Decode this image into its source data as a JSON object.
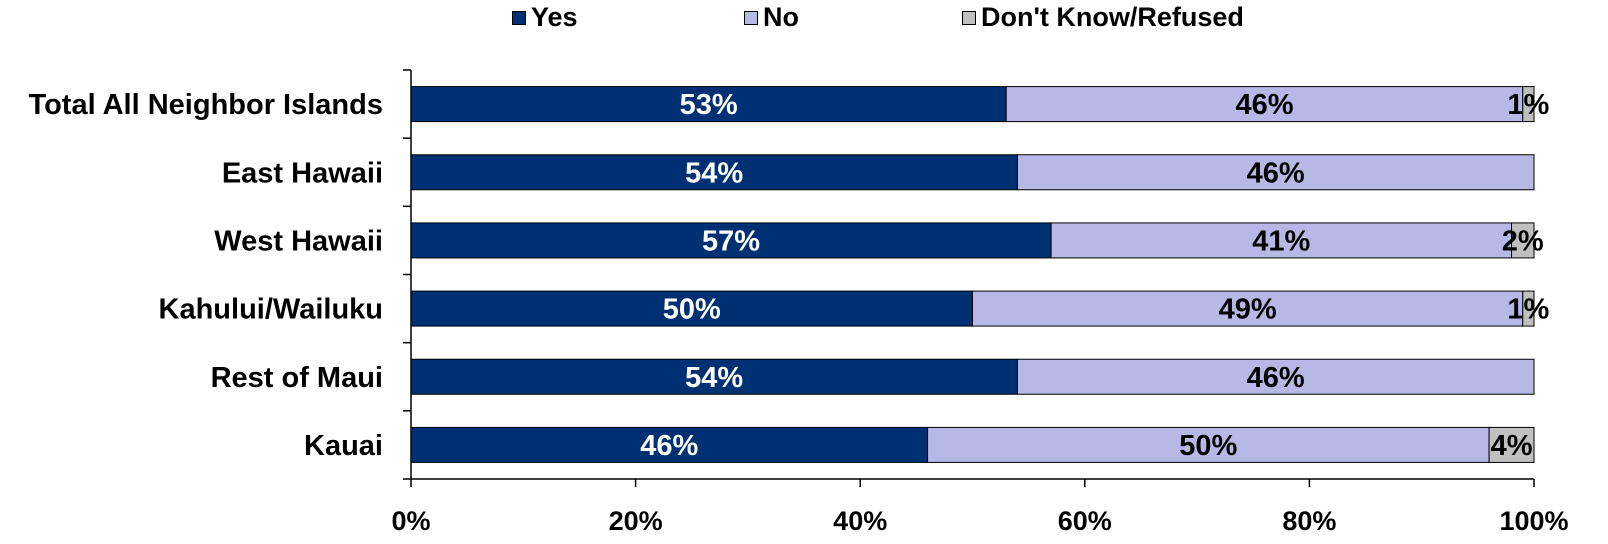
{
  "chart_data": {
    "type": "bar",
    "orientation": "horizontal",
    "stacked": true,
    "categories": [
      "Total All Neighbor Islands",
      "East Hawaii",
      "West Hawaii",
      "Kahului/Wailuku",
      "Rest of Maui",
      "Kauai"
    ],
    "series": [
      {
        "name": "Yes",
        "color": "#003074",
        "label_color": "#ffffff",
        "values": [
          53,
          54,
          57,
          50,
          54,
          46
        ],
        "labels": [
          "53%",
          "54%",
          "57%",
          "50%",
          "54%",
          "46%"
        ]
      },
      {
        "name": "No",
        "color": "#b8b8e6",
        "label_color": "#000000",
        "values": [
          46,
          46,
          41,
          49,
          46,
          50
        ],
        "labels": [
          "46%",
          "46%",
          "41%",
          "49%",
          "46%",
          "50%"
        ]
      },
      {
        "name": "Don't Know/Refused",
        "color": "#c0c0c0",
        "label_color": "#000000",
        "values": [
          1,
          0,
          2,
          1,
          0,
          4
        ],
        "labels": [
          "1%",
          "",
          "2%",
          "1%",
          "",
          "4%"
        ]
      }
    ],
    "x_ticks": [
      "0%",
      "20%",
      "40%",
      "60%",
      "80%",
      "100%"
    ],
    "xlim": [
      0,
      100
    ],
    "grid": false,
    "legend_position": "top"
  }
}
